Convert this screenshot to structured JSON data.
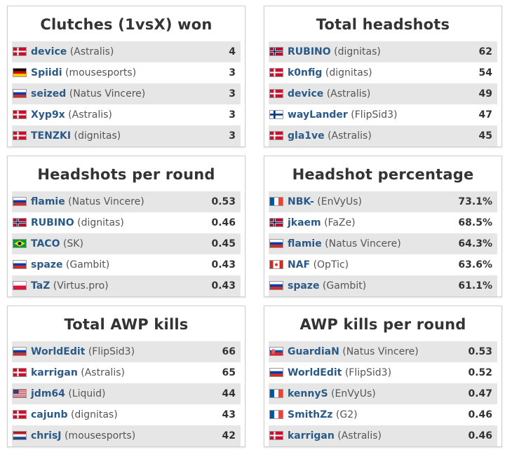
{
  "panels": [
    {
      "title": "Clutches (1vsX) won",
      "rows": [
        {
          "player": "device",
          "team": "(Astralis)",
          "value": "4",
          "flag": "denmark-flag"
        },
        {
          "player": "Spiidi",
          "team": "(mousesports)",
          "value": "3",
          "flag": "germany-flag"
        },
        {
          "player": "seized",
          "team": "(Natus Vincere)",
          "value": "3",
          "flag": "russia-flag"
        },
        {
          "player": "Xyp9x",
          "team": "(Astralis)",
          "value": "3",
          "flag": "denmark-flag"
        },
        {
          "player": "TENZKI",
          "team": "(dignitas)",
          "value": "3",
          "flag": "denmark-flag"
        }
      ]
    },
    {
      "title": "Total headshots",
      "rows": [
        {
          "player": "RUBINO",
          "team": "(dignitas)",
          "value": "62",
          "flag": "norway-flag"
        },
        {
          "player": "k0nfig",
          "team": "(dignitas)",
          "value": "54",
          "flag": "denmark-flag"
        },
        {
          "player": "device",
          "team": "(Astralis)",
          "value": "49",
          "flag": "denmark-flag"
        },
        {
          "player": "wayLander",
          "team": "(FlipSid3)",
          "value": "47",
          "flag": "finland-flag"
        },
        {
          "player": "gla1ve",
          "team": "(Astralis)",
          "value": "45",
          "flag": "denmark-flag"
        }
      ]
    },
    {
      "title": "Headshots per round",
      "rows": [
        {
          "player": "flamie",
          "team": "(Natus Vincere)",
          "value": "0.53",
          "flag": "russia-flag"
        },
        {
          "player": "RUBINO",
          "team": "(dignitas)",
          "value": "0.46",
          "flag": "norway-flag"
        },
        {
          "player": "TACO",
          "team": "(SK)",
          "value": "0.45",
          "flag": "brazil-flag"
        },
        {
          "player": "spaze",
          "team": "(Gambit)",
          "value": "0.43",
          "flag": "russia-flag"
        },
        {
          "player": "TaZ",
          "team": "(Virtus.pro)",
          "value": "0.43",
          "flag": "poland-flag"
        }
      ]
    },
    {
      "title": "Headshot percentage",
      "rows": [
        {
          "player": "NBK-",
          "team": "(EnVyUs)",
          "value": "73.1%",
          "flag": "france-flag"
        },
        {
          "player": "jkaem",
          "team": "(FaZe)",
          "value": "68.5%",
          "flag": "norway-flag"
        },
        {
          "player": "flamie",
          "team": "(Natus Vincere)",
          "value": "64.3%",
          "flag": "russia-flag"
        },
        {
          "player": "NAF",
          "team": "(OpTic)",
          "value": "63.6%",
          "flag": "canada-flag"
        },
        {
          "player": "spaze",
          "team": "(Gambit)",
          "value": "61.1%",
          "flag": "russia-flag"
        }
      ]
    },
    {
      "title": "Total AWP kills",
      "rows": [
        {
          "player": "WorldEdit",
          "team": "(FlipSid3)",
          "value": "66",
          "flag": "russia-flag"
        },
        {
          "player": "karrigan",
          "team": "(Astralis)",
          "value": "65",
          "flag": "denmark-flag"
        },
        {
          "player": "jdm64",
          "team": "(Liquid)",
          "value": "44",
          "flag": "usa-flag"
        },
        {
          "player": "cajunb",
          "team": "(dignitas)",
          "value": "43",
          "flag": "denmark-flag"
        },
        {
          "player": "chrisJ",
          "team": "(mousesports)",
          "value": "42",
          "flag": "netherlands-flag"
        }
      ]
    },
    {
      "title": "AWP kills per round",
      "rows": [
        {
          "player": "GuardiaN",
          "team": "(Natus Vincere)",
          "value": "0.53",
          "flag": "slovakia-flag"
        },
        {
          "player": "WorldEdit",
          "team": "(FlipSid3)",
          "value": "0.52",
          "flag": "russia-flag"
        },
        {
          "player": "kennyS",
          "team": "(EnVyUs)",
          "value": "0.47",
          "flag": "france-flag"
        },
        {
          "player": "SmithZz",
          "team": "(G2)",
          "value": "0.46",
          "flag": "france-flag"
        },
        {
          "player": "karrigan",
          "team": "(Astralis)",
          "value": "0.46",
          "flag": "denmark-flag"
        }
      ]
    }
  ],
  "colors": {
    "player_link": "#2b5a86",
    "row_alt_bg": "#e6e6e6",
    "title_text": "#333333"
  }
}
